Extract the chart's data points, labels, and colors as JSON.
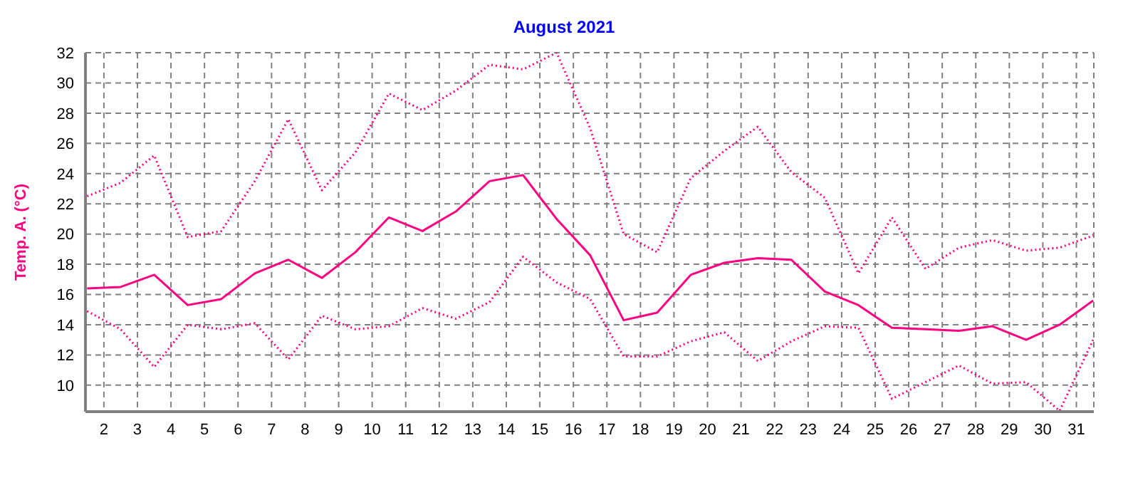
{
  "chart_data": {
    "type": "line",
    "title": "August 2021",
    "ylabel": "Temp. A. (°C)",
    "x": [
      1.5,
      2.5,
      3.5,
      4.5,
      5.5,
      6.5,
      7.5,
      8.5,
      9.5,
      10.5,
      11.5,
      12.5,
      13.5,
      14.5,
      15.5,
      16.5,
      17.5,
      18.5,
      19.5,
      20.5,
      21.5,
      22.5,
      23.5,
      24.5,
      25.5,
      26.5,
      27.5,
      28.5,
      29.5,
      30.5,
      31.5
    ],
    "xlim": [
      1.45,
      31.52
    ],
    "xticks": [
      2,
      3,
      4,
      5,
      6,
      7,
      8,
      9,
      10,
      11,
      12,
      13,
      14,
      15,
      16,
      17,
      18,
      19,
      20,
      21,
      22,
      23,
      24,
      25,
      26,
      27,
      28,
      29,
      30,
      31
    ],
    "ylim": [
      8.25,
      32
    ],
    "yticks": [
      10,
      12,
      14,
      16,
      18,
      20,
      22,
      24,
      26,
      28,
      30,
      32
    ],
    "grid": true,
    "marker": "none",
    "series": [
      {
        "color": "#ff0080",
        "line_style": "dotted",
        "values": [
          22.5,
          23.4,
          25.2,
          19.8,
          20.2,
          23.5,
          27.6,
          22.9,
          25.4,
          29.3,
          28.2,
          29.5,
          31.2,
          30.9,
          32.0,
          27.0,
          20.0,
          18.8,
          23.7,
          25.5,
          27.1,
          24.1,
          22.4,
          17.4,
          21.1,
          17.7,
          19.1,
          19.6,
          18.9,
          19.1,
          19.9
        ]
      },
      {
        "color": "#ff0080",
        "line_style": "solid",
        "values": [
          16.4,
          16.5,
          17.3,
          15.3,
          15.7,
          17.4,
          18.3,
          17.1,
          18.8,
          21.1,
          20.2,
          21.5,
          23.5,
          23.9,
          21.0,
          18.6,
          14.3,
          14.8,
          17.3,
          18.1,
          18.4,
          18.3,
          16.2,
          15.3,
          13.8,
          13.7,
          13.6,
          13.9,
          13.0,
          14.0,
          15.6
        ]
      },
      {
        "color": "#ff0080",
        "line_style": "dotted",
        "values": [
          14.9,
          13.7,
          11.2,
          14.0,
          13.7,
          14.1,
          11.7,
          14.6,
          13.7,
          13.9,
          15.1,
          14.4,
          15.5,
          18.5,
          16.8,
          15.7,
          11.9,
          11.9,
          12.9,
          13.5,
          11.6,
          12.9,
          13.9,
          13.8,
          9.1,
          10.2,
          11.3,
          10.1,
          10.2,
          8.3,
          13.0
        ]
      }
    ]
  }
}
